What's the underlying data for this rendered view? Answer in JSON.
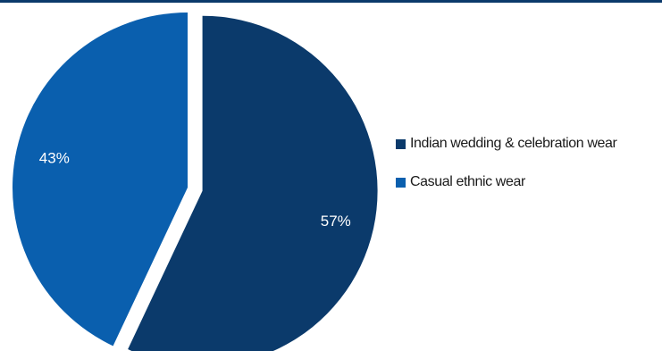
{
  "chart_data": {
    "type": "pie",
    "title": "",
    "slices": [
      {
        "label": "Indian wedding & celebration wear",
        "value": 57,
        "value_label": "57%",
        "color": "#0b3a6b",
        "exploded": true
      },
      {
        "label": "Casual ethnic wear",
        "value": 43,
        "value_label": "43%",
        "color": "#0a5fae",
        "exploded": false
      }
    ],
    "legend_position": "right"
  }
}
